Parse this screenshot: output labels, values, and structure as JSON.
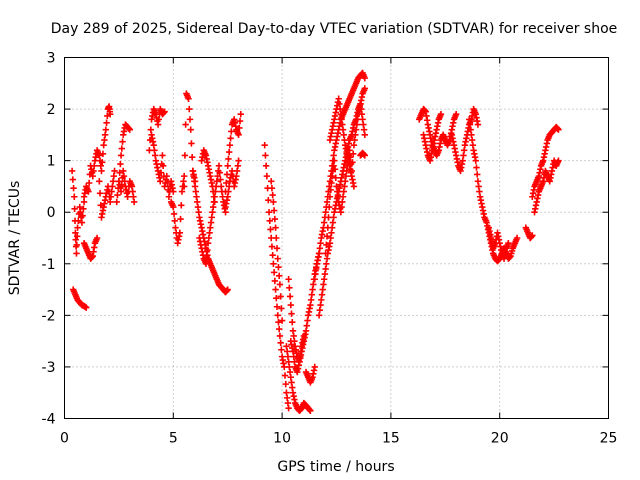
{
  "chart_data": {
    "type": "scatter",
    "title": "Day 289 of 2025, Sidereal Day-to-day VTEC variation (SDTVAR) for receiver shoe",
    "xlabel": "GPS time / hours",
    "ylabel": "SDTVAR / TECUs",
    "xlim": [
      0,
      25
    ],
    "ylim": [
      -4,
      3
    ],
    "xticks": [
      "0",
      "5",
      "10",
      "15",
      "20",
      "25"
    ],
    "yticks": [
      "-4",
      "-3",
      "-2",
      "-1",
      "0",
      "1",
      "2",
      "3"
    ],
    "grid": true,
    "marker": "plus",
    "color": "#ff0000",
    "series": [
      {
        "name": "SDTVAR",
        "segments": [
          {
            "x": [
              0.35,
              0.45,
              0.5,
              0.55,
              0.6,
              0.7,
              0.8,
              0.9
            ],
            "y": [
              0.8,
              0.3,
              -0.4,
              -0.8,
              -0.3,
              0.1,
              -0.2,
              0.2
            ]
          },
          {
            "x": [
              0.4,
              0.5,
              0.6,
              0.7,
              0.8,
              0.9,
              1.0
            ],
            "y": [
              -1.5,
              -1.6,
              -1.7,
              -1.75,
              -1.8,
              -1.82,
              -1.85
            ]
          },
          {
            "x": [
              0.9,
              1.0,
              1.1,
              1.2,
              1.3,
              1.4,
              1.5
            ],
            "y": [
              -0.6,
              -0.7,
              -0.8,
              -0.9,
              -0.85,
              -0.6,
              -0.5
            ]
          },
          {
            "x": [
              0.9,
              1.0,
              1.1,
              1.2,
              1.3,
              1.4,
              1.5,
              1.6,
              1.7,
              1.8,
              1.9,
              2.0,
              2.05,
              2.1
            ],
            "y": [
              0.3,
              0.5,
              0.4,
              0.9,
              0.7,
              1.0,
              1.2,
              1.1,
              0.8,
              1.3,
              1.6,
              2.0,
              2.05,
              1.9
            ]
          },
          {
            "x": [
              1.6,
              1.7,
              1.8,
              1.9,
              2.0,
              2.1,
              2.2,
              2.3
            ],
            "y": [
              0.6,
              -0.1,
              0.1,
              0.3,
              0.5,
              0.2,
              0.5,
              0.8
            ]
          },
          {
            "x": [
              2.4,
              2.5,
              2.6,
              2.7,
              2.8,
              2.9,
              3.0
            ],
            "y": [
              0.2,
              0.6,
              1.1,
              1.5,
              1.7,
              1.65,
              1.6
            ]
          },
          {
            "x": [
              2.5,
              2.6,
              2.7,
              2.8,
              2.9,
              3.0,
              3.1,
              3.2
            ],
            "y": [
              0.6,
              0.4,
              0.8,
              0.5,
              0.3,
              0.6,
              0.5,
              0.2
            ]
          },
          {
            "x": [
              3.9,
              4.0,
              4.1,
              4.2,
              4.3,
              4.4,
              4.5,
              4.6
            ],
            "y": [
              1.2,
              1.8,
              2.0,
              1.9,
              1.7,
              2.0,
              1.9,
              1.95
            ]
          },
          {
            "x": [
              4.0,
              4.1,
              4.2,
              4.3,
              4.4,
              4.5,
              4.6,
              4.7,
              4.8,
              4.9,
              5.0
            ],
            "y": [
              1.5,
              1.3,
              1.0,
              0.8,
              0.6,
              1.1,
              0.5,
              0.7,
              0.3,
              0.6,
              0.4
            ]
          },
          {
            "x": [
              4.9,
              5.0,
              5.1,
              5.2,
              5.3,
              5.4,
              5.5
            ],
            "y": [
              0.2,
              0.1,
              -0.3,
              -0.6,
              -0.4,
              0.4,
              0.7
            ]
          },
          {
            "x": [
              5.5,
              5.6,
              5.7,
              5.8,
              5.9,
              6.0
            ],
            "y": [
              0.5,
              2.3,
              2.2,
              1.6,
              0.8,
              0.6
            ]
          },
          {
            "x": [
              5.9,
              6.0,
              6.1,
              6.2,
              6.3,
              6.4,
              6.5,
              6.6,
              6.7,
              6.8,
              6.9,
              7.0,
              7.1,
              7.2,
              7.3,
              7.4,
              7.5
            ],
            "y": [
              0.8,
              0.5,
              0.2,
              -0.1,
              -0.3,
              -0.5,
              -0.7,
              -0.9,
              -1.0,
              -1.1,
              -1.2,
              -1.3,
              -1.4,
              -1.45,
              -1.5,
              -1.55,
              -1.5
            ]
          },
          {
            "x": [
              6.2,
              6.3,
              6.4,
              6.5,
              6.6,
              6.7,
              6.8,
              6.9,
              7.0,
              7.1,
              7.2,
              7.3,
              7.4
            ],
            "y": [
              -0.5,
              -0.7,
              -0.9,
              -1.0,
              -0.6,
              -0.3,
              0.0,
              0.3,
              0.6,
              0.9,
              0.5,
              0.2,
              0.0
            ]
          },
          {
            "x": [
              6.3,
              6.4,
              6.5,
              6.6,
              6.7,
              6.8,
              6.9
            ],
            "y": [
              1.0,
              1.2,
              1.1,
              0.9,
              0.7,
              0.5,
              0.2
            ]
          },
          {
            "x": [
              7.4,
              7.5,
              7.6,
              7.7,
              7.8,
              7.9,
              8.0,
              8.1
            ],
            "y": [
              0.4,
              0.9,
              1.3,
              1.7,
              1.8,
              1.6,
              1.5,
              1.9
            ]
          },
          {
            "x": [
              7.4,
              7.5,
              7.6,
              7.7,
              7.8,
              7.9,
              8.0
            ],
            "y": [
              0.1,
              0.3,
              0.6,
              0.8,
              0.5,
              0.7,
              1.0
            ]
          },
          {
            "x": [
              9.2,
              9.3,
              9.4,
              9.5,
              9.6,
              9.7,
              9.8,
              9.9,
              10.0,
              10.1,
              10.2,
              10.3
            ],
            "y": [
              1.3,
              0.7,
              0.0,
              -0.5,
              -1.0,
              -1.5,
              -2.0,
              -2.4,
              -2.8,
              -3.0,
              -3.5,
              -3.8
            ]
          },
          {
            "x": [
              9.5,
              9.6,
              9.7,
              9.8,
              9.9,
              10.0
            ],
            "y": [
              0.6,
              0.2,
              -0.3,
              -0.9,
              -1.4,
              -2.1
            ]
          },
          {
            "x": [
              10.2,
              10.3,
              10.4,
              10.5,
              10.6,
              10.7,
              10.8,
              10.9,
              11.0,
              11.1,
              11.2,
              11.3
            ],
            "y": [
              -2.6,
              -2.9,
              -3.2,
              -3.5,
              -3.7,
              -3.8,
              -3.85,
              -3.8,
              -3.7,
              -3.75,
              -3.8,
              -3.85
            ]
          },
          {
            "x": [
              10.3,
              10.4,
              10.5,
              10.6,
              10.7,
              10.8,
              10.9,
              11.0,
              11.1,
              11.2,
              11.3,
              11.4,
              11.5,
              11.6,
              11.7
            ],
            "y": [
              -1.3,
              -1.8,
              -2.3,
              -2.6,
              -2.8,
              -2.9,
              -2.7,
              -2.5,
              -2.3,
              -2.0,
              -1.8,
              -1.5,
              -1.2,
              -1.0,
              -0.8
            ]
          },
          {
            "x": [
              10.4,
              10.5,
              10.6,
              10.7,
              10.8,
              10.9,
              11.0
            ],
            "y": [
              -2.5,
              -2.7,
              -3.0,
              -3.1,
              -2.9,
              -2.6,
              -2.4
            ]
          },
          {
            "x": [
              11.1,
              11.2,
              11.3,
              11.4,
              11.5
            ],
            "y": [
              -3.1,
              -3.2,
              -3.3,
              -3.2,
              -3.0
            ]
          },
          {
            "x": [
              11.5,
              11.6,
              11.7,
              11.8,
              11.9,
              12.0,
              12.1,
              12.2,
              12.3,
              12.4,
              12.5,
              12.6,
              12.7,
              12.8,
              12.9,
              13.0,
              13.1,
              13.2,
              13.3,
              13.4,
              13.5,
              13.6,
              13.7,
              13.8
            ],
            "y": [
              -1.3,
              -1.0,
              -0.8,
              -0.5,
              -0.3,
              0.0,
              0.3,
              0.6,
              0.9,
              1.2,
              1.4,
              1.6,
              1.8,
              1.9,
              2.0,
              2.1,
              2.2,
              2.3,
              2.4,
              2.5,
              2.6,
              2.65,
              2.7,
              2.6
            ]
          },
          {
            "x": [
              11.7,
              11.8,
              11.9,
              12.0,
              12.1,
              12.2,
              12.3,
              12.4,
              12.5,
              12.6,
              12.7,
              12.8,
              12.9,
              13.0,
              13.1,
              13.2,
              13.3,
              13.4,
              13.5,
              13.6,
              13.7,
              13.8
            ],
            "y": [
              -2.0,
              -1.7,
              -1.4,
              -1.1,
              -0.8,
              -0.6,
              -0.3,
              0.0,
              0.2,
              0.4,
              0.6,
              0.8,
              1.0,
              1.2,
              1.4,
              1.5,
              1.7,
              1.8,
              2.0,
              2.1,
              2.3,
              2.4
            ]
          },
          {
            "x": [
              12.0,
              12.1,
              12.2,
              12.3,
              12.4,
              12.5,
              12.6,
              12.7,
              12.8,
              12.9,
              13.0,
              13.1,
              13.2,
              13.3,
              13.4,
              13.5,
              13.6,
              13.7,
              13.8
            ],
            "y": [
              -0.8,
              -0.3,
              0.3,
              0.7,
              1.0,
              0.5,
              0.2,
              0.0,
              0.3,
              0.6,
              0.9,
              1.2,
              0.8,
              1.3,
              1.6,
              1.9,
              2.1,
              1.8,
              1.5
            ]
          },
          {
            "x": [
              12.2,
              12.3,
              12.4,
              12.5,
              12.6,
              12.7,
              12.8,
              12.9,
              13.0,
              13.1,
              13.2,
              13.3
            ],
            "y": [
              1.4,
              1.6,
              1.8,
              2.0,
              2.2,
              1.9,
              1.6,
              1.3,
              1.1,
              0.9,
              0.7,
              0.5
            ]
          },
          {
            "x": [
              13.6,
              13.7,
              13.8
            ],
            "y": [
              1.1,
              1.15,
              1.1
            ]
          },
          {
            "x": [
              16.3,
              16.4,
              16.5,
              16.6,
              16.7,
              16.8,
              16.9,
              17.0,
              17.1,
              17.2,
              17.3,
              17.4,
              17.5,
              17.6,
              17.7,
              17.8,
              17.9,
              18.0
            ],
            "y": [
              1.8,
              1.9,
              2.0,
              1.95,
              1.7,
              1.5,
              1.3,
              1.2,
              1.1,
              1.2,
              1.4,
              1.5,
              1.4,
              1.3,
              1.4,
              1.6,
              1.8,
              1.9
            ]
          },
          {
            "x": [
              16.5,
              16.6,
              16.7,
              16.8,
              16.9,
              17.0,
              17.1,
              17.2,
              17.3
            ],
            "y": [
              1.5,
              1.3,
              1.1,
              1.0,
              1.2,
              1.4,
              1.6,
              1.8,
              1.9
            ]
          },
          {
            "x": [
              17.8,
              17.9,
              18.0,
              18.1,
              18.2,
              18.3,
              18.4,
              18.5,
              18.6,
              18.7,
              18.8,
              18.9,
              19.0
            ],
            "y": [
              1.5,
              1.3,
              1.1,
              0.9,
              0.8,
              1.0,
              1.3,
              1.5,
              1.7,
              1.8,
              2.0,
              1.9,
              1.7
            ]
          },
          {
            "x": [
              18.6,
              18.7,
              18.8,
              18.9,
              19.0,
              19.1,
              19.2,
              19.3,
              19.4,
              19.5,
              19.6,
              19.7,
              19.8,
              19.9,
              20.0,
              20.1,
              20.2,
              20.3,
              20.4,
              20.5,
              20.6,
              20.7,
              20.8
            ],
            "y": [
              1.8,
              1.5,
              1.2,
              1.0,
              0.6,
              0.3,
              0.1,
              -0.1,
              -0.2,
              -0.4,
              -0.6,
              -0.8,
              -0.9,
              -0.95,
              -0.9,
              -0.8,
              -0.7,
              -0.8,
              -0.9,
              -0.85,
              -0.7,
              -0.6,
              -0.5
            ]
          },
          {
            "x": [
              19.5,
              19.6,
              19.7,
              19.8,
              19.9,
              20.0,
              20.1,
              20.2,
              20.3,
              20.4
            ],
            "y": [
              -0.3,
              -0.5,
              -0.7,
              -0.6,
              -0.4,
              -0.6,
              -0.8,
              -0.9,
              -0.7,
              -0.6
            ]
          },
          {
            "x": [
              21.2,
              21.3,
              21.4,
              21.5
            ],
            "y": [
              -0.3,
              -0.4,
              -0.5,
              -0.45
            ]
          },
          {
            "x": [
              21.5,
              21.6,
              21.7,
              21.8,
              21.9,
              22.0,
              22.1,
              22.2,
              22.3,
              22.4,
              22.5,
              22.6,
              22.7
            ],
            "y": [
              0.3,
              0.5,
              0.6,
              0.7,
              0.9,
              1.0,
              1.2,
              1.4,
              1.5,
              1.55,
              1.6,
              1.65,
              1.6
            ]
          },
          {
            "x": [
              21.6,
              21.7,
              21.8,
              21.9,
              22.0,
              22.1,
              22.2,
              22.3,
              22.4,
              22.5,
              22.6,
              22.7
            ],
            "y": [
              0.0,
              0.2,
              0.4,
              0.5,
              0.6,
              0.8,
              0.7,
              0.6,
              0.8,
              1.0,
              0.9,
              1.0
            ]
          }
        ]
      }
    ]
  }
}
